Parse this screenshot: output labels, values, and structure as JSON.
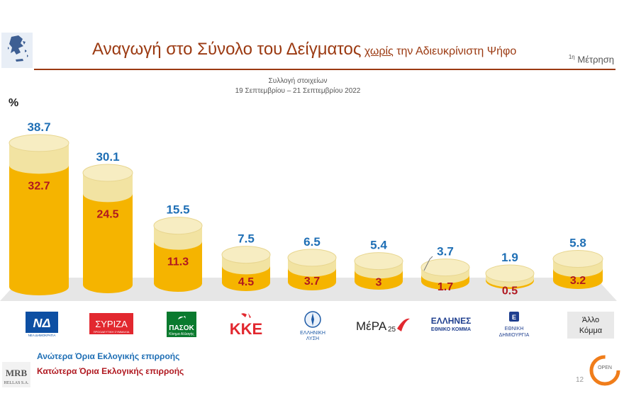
{
  "header": {
    "title_main": "Αναγωγή στο Σύνολο του Δείγματος",
    "title_emph": "χωρίς",
    "title_rest": "την Αδιευκρίνιστη Ψήφο",
    "measure_sup": "1η",
    "measure_label": "Μέτρηση",
    "fieldwork_label": "Συλλογή στοιχείων",
    "fieldwork_dates": "19 Σεπτεμβρίου  –  21 Σεπτεμβρίου 2022",
    "unit": "%"
  },
  "chart_data": {
    "type": "bar",
    "categories": [
      "ΝΔ",
      "ΣΥΡΙΖΑ",
      "ΠΑΣΟΚ",
      "ΚΚΕ",
      "ΕΛΛΗΝΙΚΗ ΛΥΣΗ",
      "ΜέΡΑ25",
      "ΕΛΛΗΝΕΣ",
      "ΕΘΝΙΚΗ ΔΗΜΙΟΥΡΓΙΑ",
      "Άλλο Κόμμα"
    ],
    "series": [
      {
        "name": "Ανώτερα Όρια Εκλογικής επιρροής",
        "values": [
          38.7,
          30.1,
          15.5,
          7.5,
          6.5,
          5.4,
          3.7,
          1.9,
          5.8
        ],
        "labels": [
          "38.7",
          "30.1",
          "15.5",
          "7.5",
          "6.5",
          "5.4",
          "3.7",
          "1.9",
          "5.8"
        ],
        "color": "#1f6fb5"
      },
      {
        "name": "Κατώτερα Όρια Εκλογικής επιρροής",
        "values": [
          32.7,
          24.5,
          11.3,
          4.5,
          3.7,
          3.0,
          1.7,
          0.5,
          3.2
        ],
        "labels": [
          "32.7",
          "24.5",
          "11.3",
          "4.5",
          "3.7",
          "3",
          "1.7",
          "0.5",
          "3.2"
        ],
        "color": "#b01820"
      }
    ],
    "ylim": [
      0,
      40
    ],
    "grid": false,
    "legend": "bottom-left",
    "colors": {
      "cylinder_upper": "#f2e3a2",
      "cylinder_lower": "#f5b400",
      "floor": "#e6e6e6"
    }
  },
  "logos": {
    "nd": {
      "text": "ΝΔ",
      "sub": "ΝΕΑ ΔΗΜΟΚΡΑΤΙΑ",
      "color": "#0d4fa3"
    },
    "syriza": {
      "text": "ΣΥΡΙΖΑ",
      "sub": "ΠΡΟΟΔΕΥΤΙΚΗ ΣΥΜΜΑΧΙΑ",
      "color": "#e2282f"
    },
    "pasok": {
      "text": "ΠΑΣΟΚ",
      "sub": "Κίνημα Αλλαγής",
      "color": "#0a7a2e"
    },
    "kke": {
      "text": "ΚΚΕ",
      "color": "#e2282f"
    },
    "elliniki_lysi": {
      "line1": "ΕΛΛΗΝΙΚΗ",
      "line2": "ΛΥΣΗ",
      "color": "#1d5aa6"
    },
    "mera25": {
      "text": "ΜέΡΑ",
      "num": "25",
      "color": "#e2282f"
    },
    "ellines": {
      "line1": "ΕΛΛΗΝΕΣ",
      "line2": "ΕΘΝΙΚΟ ΚΟΜΜΑ",
      "color": "#1f3f8f"
    },
    "ethniki_dimiourgia": {
      "line1": "ΕΘΝΙΚΗ",
      "line2": "ΔΗΜΙΟΥΡΓΙΑ",
      "color": "#1f3f8f"
    },
    "allo": {
      "line1": "Άλλο",
      "line2": "Κόμμα"
    }
  },
  "footer": {
    "legend_upper": "Ανώτερα Όρια Εκλογικής επιρροής",
    "legend_lower": "Κατώτερα Όρια Εκλογικής επιρροής",
    "mrb_name": "MRB",
    "mrb_sub": "HELLAS S.A.",
    "page": "12",
    "open_logo": "OPEN"
  }
}
